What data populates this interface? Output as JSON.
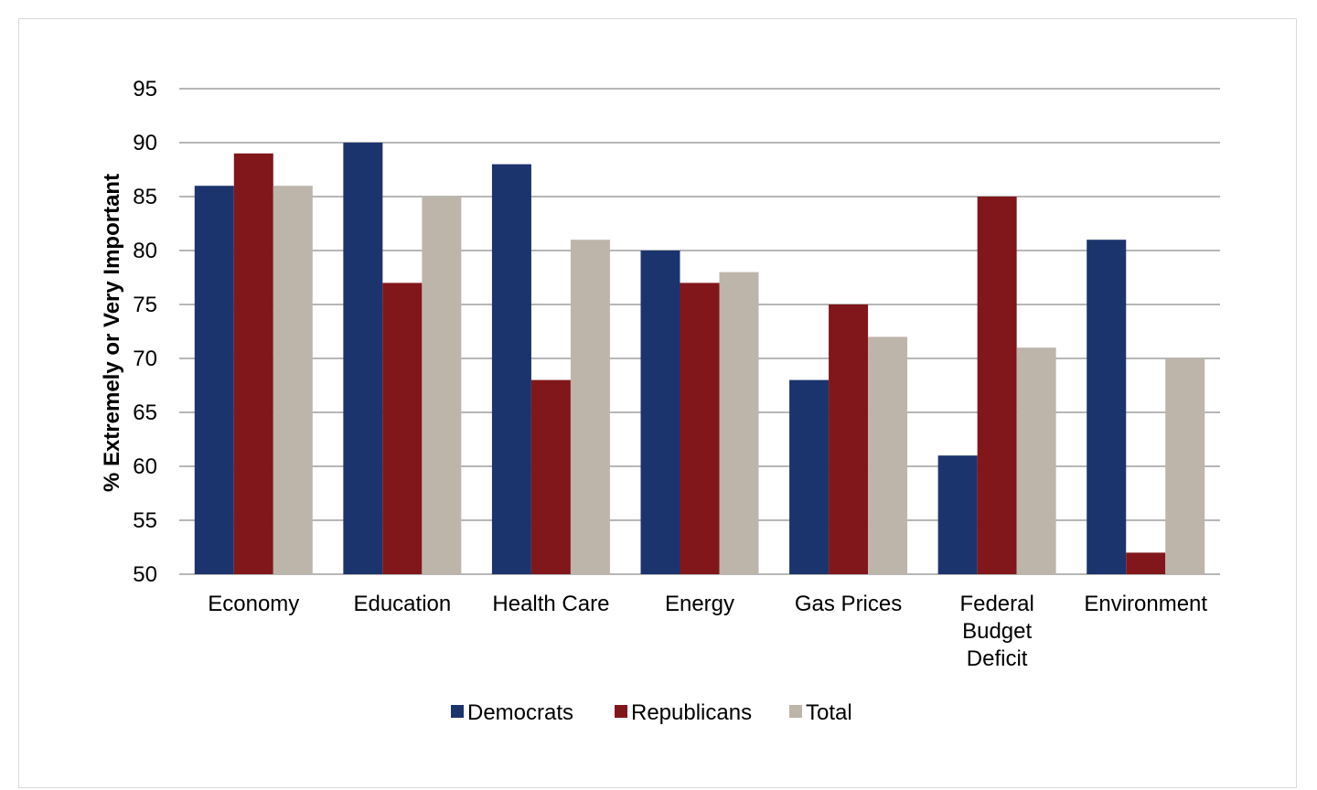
{
  "chart_data": {
    "type": "bar",
    "title": "",
    "xlabel": "",
    "ylabel": "% Extremely or Very Important",
    "ylim": [
      50,
      95
    ],
    "yticks": [
      50,
      55,
      60,
      65,
      70,
      75,
      80,
      85,
      90,
      95
    ],
    "grid": true,
    "legend_position": "bottom",
    "categories": [
      "Economy",
      "Education",
      "Health Care",
      "Energy",
      "Gas Prices",
      "Federal Budget Deficit",
      "Environment"
    ],
    "category_lines": [
      [
        "Economy"
      ],
      [
        "Education"
      ],
      [
        "Health Care"
      ],
      [
        "Energy"
      ],
      [
        "Gas Prices"
      ],
      [
        "Federal",
        "Budget",
        "Deficit"
      ],
      [
        "Environment"
      ]
    ],
    "series": [
      {
        "name": "Democrats",
        "color": "#1c346d",
        "values": [
          86,
          90,
          88,
          80,
          68,
          61,
          81
        ]
      },
      {
        "name": "Republicans",
        "color": "#81171b",
        "values": [
          89,
          77,
          68,
          77,
          75,
          85,
          52
        ]
      },
      {
        "name": "Total",
        "color": "#bdb5a9",
        "values": [
          86,
          85,
          81,
          78,
          72,
          71,
          70
        ]
      }
    ]
  }
}
